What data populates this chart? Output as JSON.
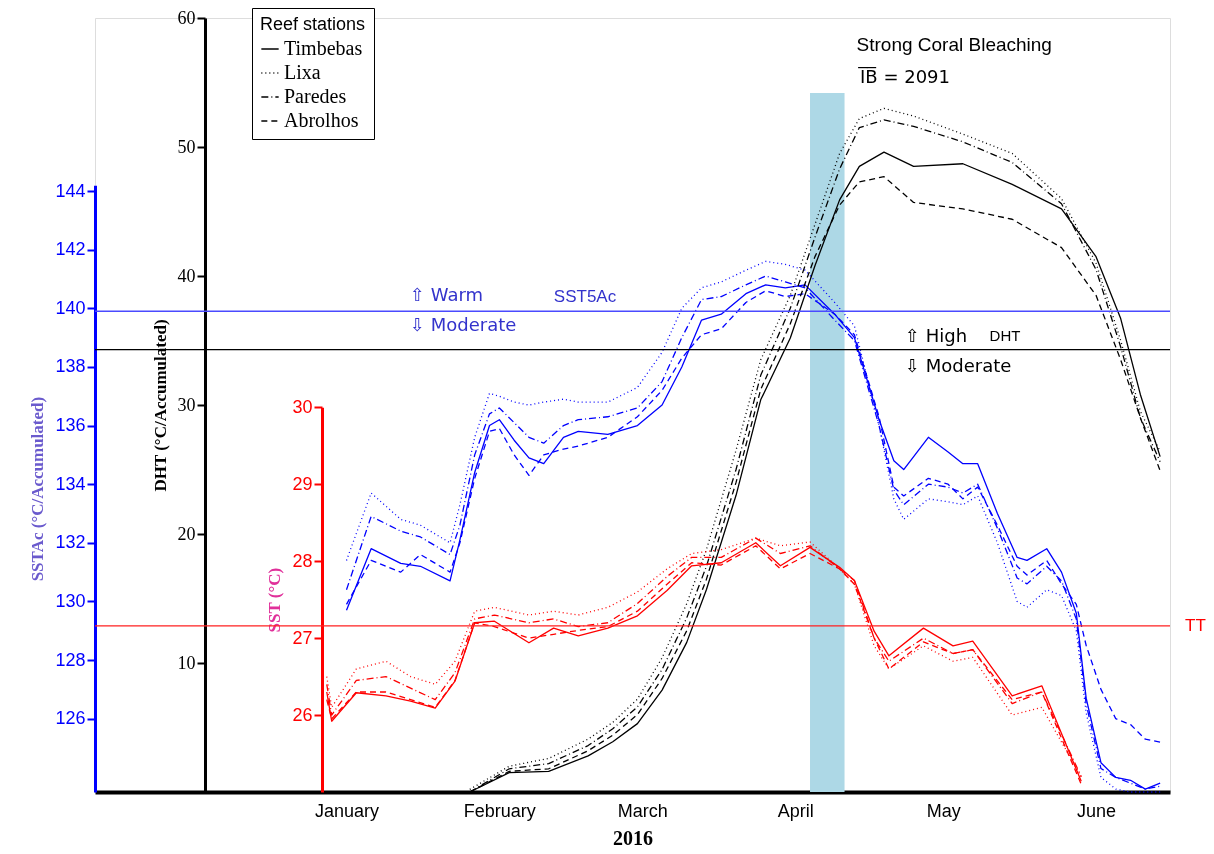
{
  "chart_data": {
    "type": "line",
    "xlabel": "2016",
    "ylabel": "DHT (°C/Accumulated)",
    "y2label": "SSTAc (°C/Accumulated)",
    "y3label": "SST (°C)",
    "legend_title": "Reef stations",
    "legend": "top left",
    "xlim": [
      "2015-11-11",
      "2016-06-16"
    ],
    "xticks": [
      {
        "value": "2016-01-01",
        "label": "January"
      },
      {
        "value": "2016-02-01",
        "label": "February"
      },
      {
        "value": "2016-03-01",
        "label": "March"
      },
      {
        "value": "2016-04-01",
        "label": "April"
      },
      {
        "value": "2016-05-01",
        "label": "May"
      },
      {
        "value": "2016-06-01",
        "label": "June"
      }
    ],
    "ylim": [
      0,
      60
    ],
    "yticks": [
      10,
      20,
      30,
      40,
      50,
      60
    ],
    "y2lim": [
      123.5,
      144.2
    ],
    "y2ticks": [
      126,
      128,
      130,
      132,
      134,
      136,
      138,
      140,
      142,
      144
    ],
    "y3lim": [
      25,
      30
    ],
    "y3ticks": [
      26,
      27,
      28,
      29,
      30
    ],
    "series": [
      {
        "color": "#0000ff",
        "axis": "y2",
        "line_style": "solid",
        "x": [
          "2016-01-01",
          "2016-01-06",
          "2016-01-12",
          "2016-01-16",
          "2016-01-22",
          "2016-01-24",
          "2016-01-27",
          "2016-01-30",
          "2016-02-01",
          "2016-02-04",
          "2016-02-07",
          "2016-02-10",
          "2016-02-14",
          "2016-02-17",
          "2016-02-23",
          "2016-02-29",
          "2016-03-05",
          "2016-03-09",
          "2016-03-13",
          "2016-03-17",
          "2016-03-22",
          "2016-03-26",
          "2016-03-30",
          "2016-04-03",
          "2016-04-09",
          "2016-04-13",
          "2016-04-18",
          "2016-04-21",
          "2016-04-23",
          "2016-04-28",
          "2016-05-02",
          "2016-05-05",
          "2016-05-08",
          "2016-05-12",
          "2016-05-16",
          "2016-05-18",
          "2016-05-22",
          "2016-05-25",
          "2016-05-28",
          "2016-05-30",
          "2016-06-02",
          "2016-06-05",
          "2016-06-08",
          "2016-06-11",
          "2016-06-14"
        ],
        "values": [
          129.7,
          131.8,
          131.3,
          131.2,
          130.7,
          132.1,
          134.4,
          136.0,
          136.2,
          135.5,
          134.9,
          134.7,
          135.6,
          135.8,
          135.7,
          136.0,
          136.7,
          138.0,
          139.6,
          139.8,
          140.5,
          140.8,
          140.7,
          140.8,
          139.8,
          139.0,
          136.2,
          134.8,
          134.5,
          135.6,
          135.1,
          134.7,
          134.7,
          133.0,
          131.5,
          131.4,
          131.8,
          131.0,
          129.6,
          126.7,
          124.5,
          124.0,
          123.9,
          123.6,
          123.8
        ]
      },
      {
        "color": "#0000ff",
        "axis": "y2",
        "line_style": "dotted",
        "x": [
          "2016-01-01",
          "2016-01-06",
          "2016-01-12",
          "2016-01-16",
          "2016-01-22",
          "2016-01-24",
          "2016-01-27",
          "2016-01-30",
          "2016-02-01",
          "2016-02-04",
          "2016-02-07",
          "2016-02-10",
          "2016-02-14",
          "2016-02-17",
          "2016-02-23",
          "2016-02-29",
          "2016-03-05",
          "2016-03-09",
          "2016-03-13",
          "2016-03-17",
          "2016-03-22",
          "2016-03-26",
          "2016-03-30",
          "2016-04-03",
          "2016-04-09",
          "2016-04-13",
          "2016-04-18",
          "2016-04-21",
          "2016-04-23",
          "2016-04-28",
          "2016-05-02",
          "2016-05-05",
          "2016-05-08",
          "2016-05-12",
          "2016-05-16",
          "2016-05-18",
          "2016-05-22",
          "2016-05-25",
          "2016-05-28",
          "2016-05-30",
          "2016-06-02",
          "2016-06-05",
          "2016-06-08",
          "2016-06-11",
          "2016-06-14"
        ],
        "values": [
          131.4,
          133.7,
          132.8,
          132.6,
          132.0,
          133.3,
          135.6,
          137.1,
          137.0,
          136.8,
          136.7,
          136.8,
          136.9,
          136.8,
          136.8,
          137.3,
          138.5,
          140.0,
          140.7,
          140.9,
          141.3,
          141.6,
          141.5,
          141.3,
          140.2,
          139.4,
          136.0,
          133.5,
          132.8,
          133.5,
          133.4,
          133.3,
          133.6,
          132.0,
          130.0,
          129.8,
          130.4,
          130.2,
          129.0,
          126.2,
          124.0,
          123.6,
          123.5,
          123.5,
          123.5
        ]
      },
      {
        "color": "#0000ff",
        "axis": "y2",
        "line_style": "dashdot",
        "x": [
          "2016-01-01",
          "2016-01-06",
          "2016-01-12",
          "2016-01-16",
          "2016-01-22",
          "2016-01-24",
          "2016-01-27",
          "2016-01-30",
          "2016-02-01",
          "2016-02-04",
          "2016-02-07",
          "2016-02-10",
          "2016-02-14",
          "2016-02-17",
          "2016-02-23",
          "2016-02-29",
          "2016-03-05",
          "2016-03-09",
          "2016-03-13",
          "2016-03-17",
          "2016-03-22",
          "2016-03-26",
          "2016-03-30",
          "2016-04-03",
          "2016-04-09",
          "2016-04-13",
          "2016-04-18",
          "2016-04-21",
          "2016-04-23",
          "2016-04-28",
          "2016-05-02",
          "2016-05-05",
          "2016-05-08",
          "2016-05-12",
          "2016-05-16",
          "2016-05-18",
          "2016-05-22",
          "2016-05-25",
          "2016-05-28",
          "2016-05-30",
          "2016-06-02",
          "2016-06-05",
          "2016-06-08",
          "2016-06-11",
          "2016-06-14"
        ],
        "values": [
          130.4,
          132.9,
          132.4,
          132.2,
          131.6,
          132.6,
          135.0,
          136.4,
          136.6,
          136.1,
          135.6,
          135.4,
          136.0,
          136.2,
          136.3,
          136.6,
          137.5,
          139.0,
          140.3,
          140.4,
          140.8,
          141.1,
          140.9,
          140.7,
          139.6,
          138.9,
          136.0,
          133.8,
          133.3,
          134.0,
          133.9,
          133.7,
          134.0,
          132.5,
          130.8,
          130.6,
          131.2,
          130.7,
          129.4,
          126.5,
          124.3,
          124.0,
          123.8,
          123.6,
          123.7
        ]
      },
      {
        "color": "#0000ff",
        "axis": "y2",
        "line_style": "dashed",
        "x": [
          "2016-01-01",
          "2016-01-06",
          "2016-01-12",
          "2016-01-16",
          "2016-01-22",
          "2016-01-24",
          "2016-01-27",
          "2016-01-30",
          "2016-02-01",
          "2016-02-04",
          "2016-02-07",
          "2016-02-10",
          "2016-02-14",
          "2016-02-17",
          "2016-02-23",
          "2016-02-29",
          "2016-03-05",
          "2016-03-09",
          "2016-03-13",
          "2016-03-17",
          "2016-03-22",
          "2016-03-26",
          "2016-03-30",
          "2016-04-03",
          "2016-04-09",
          "2016-04-13",
          "2016-04-18",
          "2016-04-21",
          "2016-04-23",
          "2016-04-28",
          "2016-05-02",
          "2016-05-05",
          "2016-05-08",
          "2016-05-12",
          "2016-05-16",
          "2016-05-18",
          "2016-05-22",
          "2016-05-25",
          "2016-05-28",
          "2016-05-30",
          "2016-06-02",
          "2016-06-05",
          "2016-06-08",
          "2016-06-11",
          "2016-06-14"
        ],
        "values": [
          129.9,
          131.4,
          131.0,
          131.6,
          131.0,
          132.0,
          134.2,
          135.8,
          135.9,
          135.0,
          134.3,
          135.0,
          135.2,
          135.3,
          135.6,
          136.3,
          137.2,
          138.3,
          139.1,
          139.3,
          140.2,
          140.6,
          140.4,
          140.5,
          139.8,
          139.1,
          136.3,
          133.9,
          133.6,
          134.2,
          134.0,
          133.5,
          133.9,
          132.6,
          131.2,
          130.9,
          131.4,
          130.6,
          129.9,
          128.5,
          127.0,
          126.0,
          125.8,
          125.3,
          125.2
        ]
      },
      {
        "name": "Timbebas",
        "color": "#000000",
        "axis": "y",
        "line_style": "solid",
        "x": [
          "2016-01-26",
          "2016-02-03",
          "2016-02-11",
          "2016-02-19",
          "2016-02-24",
          "2016-02-29",
          "2016-03-05",
          "2016-03-10",
          "2016-03-14",
          "2016-03-20",
          "2016-03-25",
          "2016-03-31",
          "2016-04-05",
          "2016-04-10",
          "2016-04-14",
          "2016-04-19",
          "2016-04-25",
          "2016-05-05",
          "2016-05-15",
          "2016-05-25",
          "2016-06-01",
          "2016-06-06",
          "2016-06-10",
          "2016-06-14"
        ],
        "values": [
          0.0,
          1.5,
          1.6,
          2.8,
          3.9,
          5.3,
          7.9,
          11.6,
          15.7,
          23.0,
          30.4,
          35.2,
          40.8,
          45.9,
          48.5,
          49.6,
          48.5,
          48.7,
          47.1,
          45.2,
          41.5,
          36.7,
          30.8,
          26.0
        ]
      },
      {
        "name": "Lixa",
        "color": "#000000",
        "axis": "y",
        "line_style": "dotted",
        "x": [
          "2016-01-26",
          "2016-02-03",
          "2016-02-11",
          "2016-02-19",
          "2016-02-24",
          "2016-02-29",
          "2016-03-05",
          "2016-03-10",
          "2016-03-14",
          "2016-03-20",
          "2016-03-25",
          "2016-03-31",
          "2016-04-05",
          "2016-04-10",
          "2016-04-14",
          "2016-04-19",
          "2016-04-25",
          "2016-05-05",
          "2016-05-15",
          "2016-05-25",
          "2016-06-01",
          "2016-06-06",
          "2016-06-10",
          "2016-06-14"
        ],
        "values": [
          0.2,
          2.0,
          2.6,
          4.1,
          5.4,
          7.2,
          10.4,
          14.6,
          18.8,
          26.5,
          33.5,
          38.5,
          44.0,
          49.5,
          52.2,
          53.0,
          52.4,
          51.0,
          49.5,
          46.0,
          41.0,
          35.0,
          29.5,
          26.4
        ]
      },
      {
        "name": "Paredes",
        "color": "#000000",
        "axis": "y",
        "line_style": "dashdot",
        "x": [
          "2016-01-26",
          "2016-02-03",
          "2016-02-11",
          "2016-02-19",
          "2016-02-24",
          "2016-02-29",
          "2016-03-05",
          "2016-03-10",
          "2016-03-14",
          "2016-03-20",
          "2016-03-25",
          "2016-03-31",
          "2016-04-05",
          "2016-04-10",
          "2016-04-14",
          "2016-04-19",
          "2016-04-25",
          "2016-05-05",
          "2016-05-15",
          "2016-05-25",
          "2016-06-01",
          "2016-06-06",
          "2016-06-10",
          "2016-06-14"
        ],
        "values": [
          0.0,
          1.8,
          2.2,
          3.6,
          4.9,
          6.6,
          9.5,
          13.5,
          17.5,
          25.0,
          32.3,
          37.5,
          43.0,
          48.3,
          51.5,
          52.1,
          51.6,
          50.4,
          48.8,
          45.6,
          40.5,
          34.5,
          29.0,
          25.6
        ]
      },
      {
        "name": "Abrolhos",
        "color": "#000000",
        "axis": "y",
        "line_style": "dashed",
        "x": [
          "2016-01-26",
          "2016-02-03",
          "2016-02-11",
          "2016-02-19",
          "2016-02-24",
          "2016-02-29",
          "2016-03-05",
          "2016-03-10",
          "2016-03-14",
          "2016-03-20",
          "2016-03-25",
          "2016-03-31",
          "2016-04-05",
          "2016-04-10",
          "2016-04-14",
          "2016-04-19",
          "2016-04-25",
          "2016-05-05",
          "2016-05-15",
          "2016-05-25",
          "2016-06-01",
          "2016-06-06",
          "2016-06-10",
          "2016-06-14"
        ],
        "values": [
          0.0,
          1.6,
          1.8,
          3.2,
          4.4,
          6.0,
          8.8,
          12.5,
          16.5,
          24.0,
          31.2,
          36.3,
          41.5,
          45.5,
          47.3,
          47.7,
          45.7,
          45.2,
          44.4,
          42.2,
          38.5,
          33.5,
          29.0,
          24.9
        ]
      },
      {
        "color": "#ff0000",
        "axis": "y3",
        "line_style": "solid",
        "x": [
          "2015-12-28",
          "2015-12-29",
          "2016-01-03",
          "2016-01-09",
          "2016-01-14",
          "2016-01-19",
          "2016-01-23",
          "2016-01-27",
          "2016-01-31",
          "2016-02-07",
          "2016-02-12",
          "2016-02-17",
          "2016-02-23",
          "2016-02-29",
          "2016-03-06",
          "2016-03-11",
          "2016-03-17",
          "2016-03-24",
          "2016-03-29",
          "2016-04-04",
          "2016-04-10",
          "2016-04-13",
          "2016-04-17",
          "2016-04-20",
          "2016-04-27",
          "2016-05-03",
          "2016-05-07",
          "2016-05-15",
          "2016-05-21",
          "2016-05-29"
        ],
        "values": [
          26.3,
          25.92,
          26.29,
          26.25,
          26.18,
          26.09,
          26.44,
          27.2,
          27.22,
          26.94,
          27.13,
          27.03,
          27.13,
          27.29,
          27.62,
          27.94,
          27.98,
          28.24,
          27.94,
          28.18,
          27.92,
          27.75,
          27.09,
          26.77,
          27.13,
          26.9,
          26.96,
          26.25,
          26.38,
          25.14
        ]
      },
      {
        "color": "#ff0000",
        "axis": "y3",
        "line_style": "dotted",
        "x": [
          "2015-12-28",
          "2015-12-29",
          "2016-01-03",
          "2016-01-09",
          "2016-01-14",
          "2016-01-19",
          "2016-01-23",
          "2016-01-27",
          "2016-01-31",
          "2016-02-07",
          "2016-02-12",
          "2016-02-17",
          "2016-02-23",
          "2016-02-29",
          "2016-03-06",
          "2016-03-11",
          "2016-03-17",
          "2016-03-24",
          "2016-03-29",
          "2016-04-04",
          "2016-04-10",
          "2016-04-13",
          "2016-04-17",
          "2016-04-20",
          "2016-04-27",
          "2016-05-03",
          "2016-05-07",
          "2016-05-15",
          "2016-05-21",
          "2016-05-29"
        ],
        "values": [
          26.5,
          26.1,
          26.6,
          26.7,
          26.5,
          26.4,
          26.7,
          27.35,
          27.4,
          27.3,
          27.35,
          27.3,
          27.4,
          27.6,
          27.9,
          28.1,
          28.15,
          28.3,
          28.2,
          28.25,
          27.9,
          27.7,
          26.9,
          26.6,
          26.9,
          26.7,
          26.75,
          26.0,
          26.1,
          25.2
        ]
      },
      {
        "color": "#ff0000",
        "axis": "y3",
        "line_style": "dashdot",
        "x": [
          "2015-12-28",
          "2015-12-29",
          "2016-01-03",
          "2016-01-09",
          "2016-01-14",
          "2016-01-19",
          "2016-01-23",
          "2016-01-27",
          "2016-01-31",
          "2016-02-07",
          "2016-02-12",
          "2016-02-17",
          "2016-02-23",
          "2016-02-29",
          "2016-03-06",
          "2016-03-11",
          "2016-03-17",
          "2016-03-24",
          "2016-03-29",
          "2016-04-04",
          "2016-04-10",
          "2016-04-13",
          "2016-04-17",
          "2016-04-20",
          "2016-04-27",
          "2016-05-03",
          "2016-05-07",
          "2016-05-15",
          "2016-05-21",
          "2016-05-29"
        ],
        "values": [
          26.4,
          26.0,
          26.45,
          26.5,
          26.35,
          26.2,
          26.55,
          27.25,
          27.3,
          27.2,
          27.25,
          27.15,
          27.2,
          27.45,
          27.8,
          28.05,
          28.05,
          28.3,
          28.1,
          28.2,
          27.9,
          27.75,
          27.0,
          26.7,
          27.0,
          26.8,
          26.85,
          26.15,
          26.3,
          25.2
        ]
      },
      {
        "color": "#ff0000",
        "axis": "y3",
        "line_style": "dashed",
        "x": [
          "2015-12-28",
          "2015-12-29",
          "2016-01-03",
          "2016-01-09",
          "2016-01-14",
          "2016-01-19",
          "2016-01-23",
          "2016-01-27",
          "2016-01-31",
          "2016-02-07",
          "2016-02-12",
          "2016-02-17",
          "2016-02-23",
          "2016-02-29",
          "2016-03-06",
          "2016-03-11",
          "2016-03-17",
          "2016-03-24",
          "2016-03-29",
          "2016-04-04",
          "2016-04-10",
          "2016-04-13",
          "2016-04-17",
          "2016-04-20",
          "2016-04-27",
          "2016-05-03",
          "2016-05-07",
          "2016-05-15",
          "2016-05-21",
          "2016-05-29"
        ],
        "values": [
          26.2,
          25.95,
          26.3,
          26.3,
          26.2,
          26.1,
          26.45,
          27.2,
          27.15,
          27.0,
          27.05,
          27.1,
          27.15,
          27.35,
          27.7,
          27.98,
          27.95,
          28.2,
          27.9,
          28.1,
          27.9,
          27.7,
          27.0,
          26.6,
          26.95,
          26.8,
          26.85,
          26.2,
          26.3,
          25.1
        ]
      }
    ],
    "ref_lines": [
      {
        "axis": "y2",
        "value": 139.9,
        "label": "SST5Ac",
        "color": "#4a4aff"
      },
      {
        "axis": "y",
        "value": 34.3,
        "label": "DHT",
        "color": "#000000"
      },
      {
        "axis": "y3",
        "value": 27.16,
        "label": "TT",
        "color": "#ff2020"
      }
    ],
    "bands": [
      {
        "axis": "x",
        "from": "2016-04-04",
        "to": "2016-04-11",
        "label": "Strong Coral Bleaching",
        "color": "#add8e6"
      }
    ],
    "annotations": [
      "I̅B̅ = 2091",
      "⇧ Warm",
      "⇩ Moderate",
      "⇧ High",
      "⇩ Moderate"
    ]
  }
}
